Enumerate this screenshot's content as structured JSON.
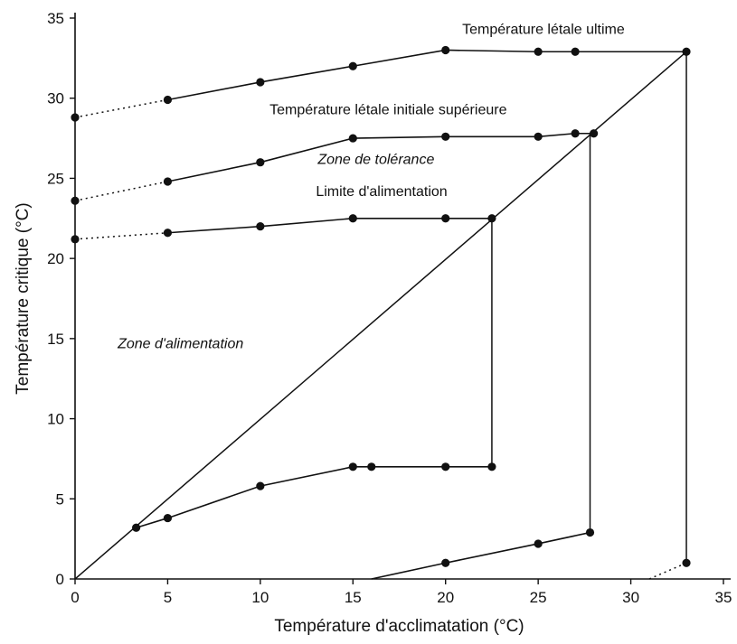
{
  "chart_data": {
    "type": "line",
    "xlabel": "Température d'acclimatation (°C)",
    "ylabel": "Température critique (°C)",
    "xlim": [
      0,
      35
    ],
    "ylim": [
      0,
      35
    ],
    "xticks": [
      0,
      5,
      10,
      15,
      20,
      25,
      30,
      35
    ],
    "yticks": [
      0,
      5,
      10,
      15,
      20,
      25,
      30,
      35
    ],
    "grid": false,
    "colors": {
      "line": "#111111",
      "point": "#111111"
    },
    "series": [
      {
        "label": "Température létale ultime",
        "points": [
          [
            5,
            29.9
          ],
          [
            10,
            31
          ],
          [
            15,
            32
          ],
          [
            20,
            33
          ],
          [
            25,
            32.9
          ],
          [
            27,
            32.9
          ],
          [
            33,
            32.9
          ]
        ],
        "extrapolated": [
          [
            0,
            28.8
          ],
          [
            5,
            29.9
          ]
        ]
      },
      {
        "label": "Température létale initiale supérieure",
        "points": [
          [
            5,
            24.8
          ],
          [
            10,
            26
          ],
          [
            15,
            27.5
          ],
          [
            20,
            27.6
          ],
          [
            25,
            27.6
          ],
          [
            27,
            27.8
          ],
          [
            28,
            27.8
          ]
        ],
        "extrapolated": [
          [
            0,
            23.6
          ],
          [
            5,
            24.8
          ]
        ]
      },
      {
        "label": "Limite d'alimentation",
        "points": [
          [
            5,
            21.6
          ],
          [
            10,
            22
          ],
          [
            15,
            22.5
          ],
          [
            20,
            22.5
          ],
          [
            22.5,
            22.5
          ]
        ],
        "extrapolated": [
          [
            0,
            21.2
          ],
          [
            5,
            21.6
          ]
        ]
      },
      {
        "label": "",
        "points": [
          [
            3.3,
            3.2
          ],
          [
            5,
            3.8
          ],
          [
            10,
            5.8
          ],
          [
            15,
            7
          ],
          [
            16,
            7
          ],
          [
            20,
            7
          ],
          [
            22.5,
            7
          ]
        ]
      },
      {
        "label": "",
        "points": [
          [
            16,
            0
          ],
          [
            20,
            1
          ],
          [
            25,
            2.2
          ],
          [
            27.8,
            2.9
          ]
        ],
        "first_point_marked": false
      },
      {
        "label": "",
        "points": [
          [
            33,
            1
          ]
        ],
        "extrapolated": [
          [
            31,
            0
          ],
          [
            33,
            1
          ]
        ]
      }
    ],
    "reference_lines": [
      {
        "from": [
          0,
          0
        ],
        "to": [
          33,
          32.9
        ]
      },
      {
        "from": [
          22.5,
          22.5
        ],
        "to": [
          22.5,
          7
        ]
      },
      {
        "from": [
          27.8,
          27.8
        ],
        "to": [
          27.8,
          2.9
        ]
      },
      {
        "from": [
          33,
          32.9
        ],
        "to": [
          33,
          1
        ]
      }
    ],
    "annotations": [
      {
        "text": "Température létale ultime",
        "x": 20.9,
        "y": 34,
        "style": "normal"
      },
      {
        "text": "Température létale initiale supérieure",
        "x": 10.5,
        "y": 29,
        "style": "normal"
      },
      {
        "text": "Zone de tolérance",
        "x": 13.1,
        "y": 25.9,
        "style": "italic"
      },
      {
        "text": "Limite d'alimentation",
        "x": 13,
        "y": 23.9,
        "style": "normal"
      },
      {
        "text": "Zone d'alimentation",
        "x": 2.3,
        "y": 14.4,
        "style": "italic"
      }
    ]
  }
}
